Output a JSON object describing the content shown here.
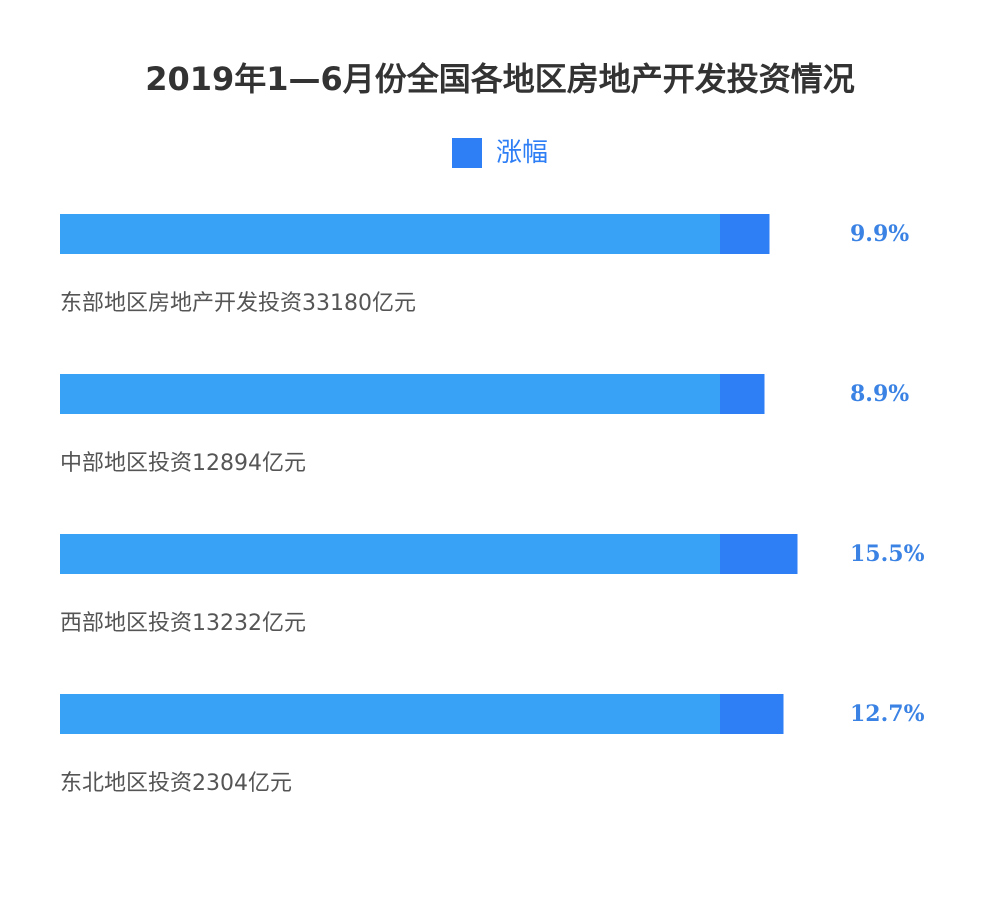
{
  "chart_data": {
    "type": "bar",
    "title": "2019年1—6月份全国各地区房地产开发投资情况",
    "legend": [
      {
        "name": "涨幅",
        "color": "#2e7ef5"
      }
    ],
    "legend_position": "top-center",
    "orientation": "horizontal",
    "categories": [
      "东部地区房地产开发投资33180亿元",
      "中部地区投资12894亿元",
      "西部地区投资13232亿元",
      "东北地区投资2304亿元"
    ],
    "series": [
      {
        "name": "涨幅",
        "values": [
          9.9,
          8.9,
          15.5,
          12.7
        ],
        "value_labels": [
          "9.9%",
          "8.9%",
          "15.5%",
          "12.7%"
        ],
        "unit": "%"
      }
    ],
    "colors": {
      "base_bar": "#38a2f7",
      "increase": "#2e7ef5",
      "pct_text": "#3a82e4",
      "title_text": "#333333",
      "label_text": "#555555"
    },
    "grid": false,
    "axes_visible": false
  }
}
